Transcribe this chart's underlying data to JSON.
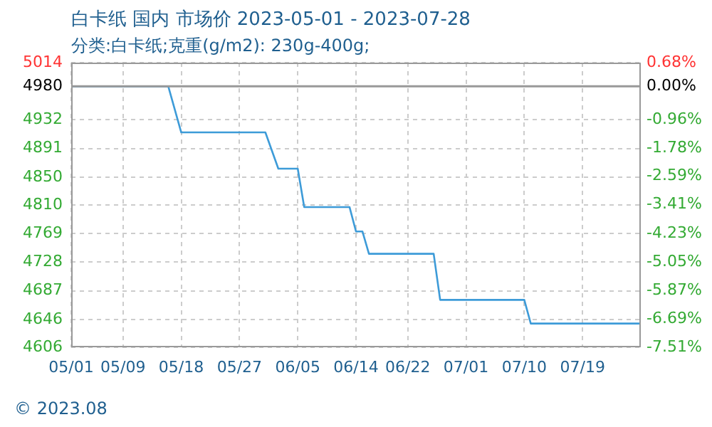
{
  "chart_data": {
    "type": "step",
    "title": "白卡纸 国内 市场价 2023-05-01 - 2023-07-28",
    "subtitle": "分类:白卡纸;克重(g/m2): 230g-400g;",
    "annotations": [
      "© 2023.08"
    ],
    "x": [
      "2023-05-01",
      "2023-05-16",
      "2023-05-18",
      "2023-05-31",
      "2023-06-02",
      "2023-06-05",
      "2023-06-06",
      "2023-06-13",
      "2023-06-14",
      "2023-06-15",
      "2023-06-16",
      "2023-06-26",
      "2023-06-27",
      "2023-07-10",
      "2023-07-11",
      "2023-07-28"
    ],
    "series": [
      {
        "color": "#3d9bd8",
        "values": [
          4980,
          4980,
          4914,
          4914,
          4862,
          4862,
          4807,
          4807,
          4772,
          4772,
          4740,
          4740,
          4674,
          4674,
          4640,
          4640
        ]
      }
    ],
    "xlim": [
      "2023-05-01",
      "2023-07-28"
    ],
    "xticks": [
      {
        "value": "2023-05-01",
        "label": "05/01"
      },
      {
        "value": "2023-05-09",
        "label": "05/09"
      },
      {
        "value": "2023-05-18",
        "label": "05/18"
      },
      {
        "value": "2023-05-27",
        "label": "05/27"
      },
      {
        "value": "2023-06-05",
        "label": "06/05"
      },
      {
        "value": "2023-06-14",
        "label": "06/14"
      },
      {
        "value": "2023-06-22",
        "label": "06/22"
      },
      {
        "value": "2023-07-01",
        "label": "07/01"
      },
      {
        "value": "2023-07-10",
        "label": "07/10"
      },
      {
        "value": "2023-07-19",
        "label": "07/19"
      }
    ],
    "ylim": [
      4606,
      5014
    ],
    "yticks": [
      5014,
      4980,
      4932,
      4891,
      4850,
      4810,
      4769,
      4728,
      4687,
      4646,
      4606
    ],
    "y2lim": [
      -7.51,
      0.68
    ],
    "y2ticks": [
      {
        "value": 0.68,
        "label": "0.68%"
      },
      {
        "value": 0,
        "label": "0.00%"
      },
      {
        "value": -0.96,
        "label": "-0.96%"
      },
      {
        "value": -1.78,
        "label": "-1.78%"
      },
      {
        "value": -2.59,
        "label": "-2.59%"
      },
      {
        "value": -3.41,
        "label": "-3.41%"
      },
      {
        "value": -4.23,
        "label": "-4.23%"
      },
      {
        "value": -5.05,
        "label": "-5.05%"
      },
      {
        "value": -5.87,
        "label": "-5.87%"
      },
      {
        "value": -6.69,
        "label": "-6.69%"
      },
      {
        "value": -7.51,
        "label": "-7.51%"
      }
    ],
    "ref_lines": [
      {
        "axis": "y",
        "value": 4980,
        "color": "#999999"
      }
    ],
    "grid": true,
    "legend": false,
    "marker": "none",
    "line_style": "solid"
  }
}
